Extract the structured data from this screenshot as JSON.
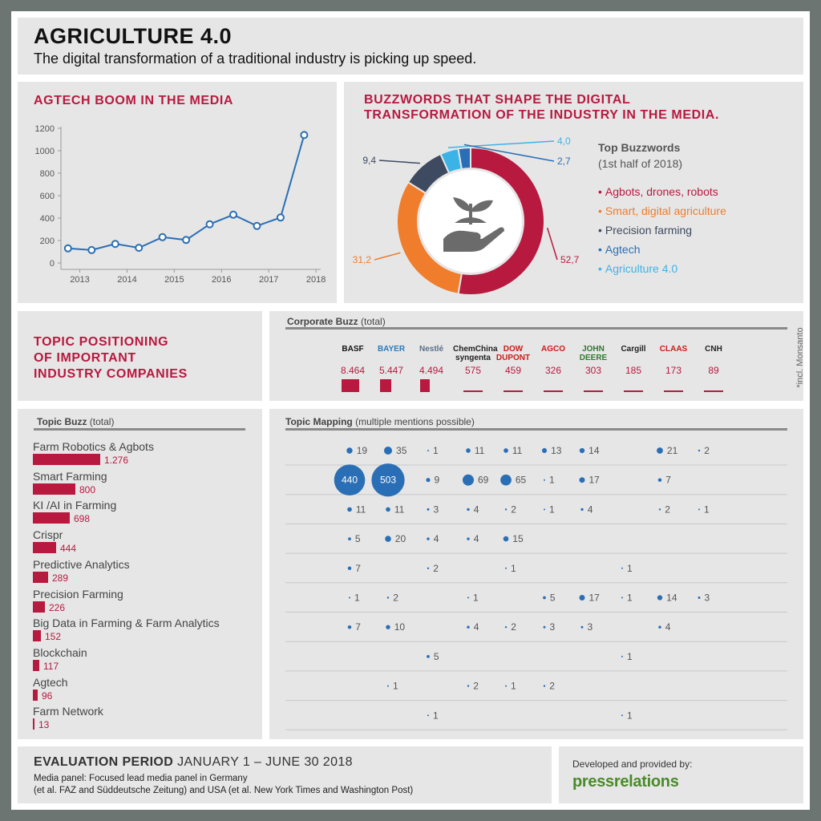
{
  "header": {
    "title": "AGRICULTURE 4.0",
    "subtitle": "The digital transformation of a traditional industry is picking up speed."
  },
  "media": {
    "title": "AGTECH BOOM IN THE MEDIA"
  },
  "buzzwords": {
    "title_line1": "BUZZWORDS THAT SHAPE THE DIGITAL",
    "title_line2": "TRANSFORMATION OF THE INDUSTRY IN THE MEDIA.",
    "legend_title": "Top Buzzwords",
    "legend_subtitle": "(1st half of 2018)",
    "legend": [
      {
        "label": "Agbots, drones, robots",
        "color": "#b8193f"
      },
      {
        "label": "Smart, digital agriculture",
        "color": "#ef7d2c"
      },
      {
        "label": "Precision farming",
        "color": "#3e4a60"
      },
      {
        "label": "Agtech",
        "color": "#2a6fb5"
      },
      {
        "label": "Agriculture 4.0",
        "color": "#3cb3e6"
      }
    ],
    "center_icon": "plant-in-hand-icon"
  },
  "positioning": {
    "title_line1": "TOPIC POSITIONING",
    "title_line2": "OF IMPORTANT",
    "title_line3": "INDUSTRY COMPANIES",
    "corporate_head": "Corporate Buzz",
    "corporate_head_suffix": "(total)",
    "monsanto_note": "*incl. Monsanto"
  },
  "topics": {
    "head": "Topic Buzz",
    "head_suffix": "(total)",
    "mapping_head": "Topic Mapping",
    "mapping_head_suffix": "(multiple mentions possible)"
  },
  "companies": [
    {
      "name": "BASF",
      "total": "8.464",
      "total_num": 8464,
      "color": "#111111"
    },
    {
      "name": "BAYER",
      "total": "5.447",
      "total_num": 5447,
      "color": "#2a7ab8"
    },
    {
      "name": "Nestlé",
      "total": "4.494",
      "total_num": 4494,
      "color": "#5b6f86"
    },
    {
      "name": "ChemChina syngenta",
      "total": "575",
      "total_num": 575,
      "color": "#222222"
    },
    {
      "name": "DOW DUPONT",
      "total": "459",
      "total_num": 459,
      "color": "#cc1a1a"
    },
    {
      "name": "AGCO",
      "total": "326",
      "total_num": 326,
      "color": "#cc1a1a"
    },
    {
      "name": "JOHN DEERE",
      "total": "303",
      "total_num": 303,
      "color": "#2f7a2f"
    },
    {
      "name": "Cargill",
      "total": "185",
      "total_num": 185,
      "color": "#222222"
    },
    {
      "name": "CLAAS",
      "total": "173",
      "total_num": 173,
      "color": "#cc1a1a"
    },
    {
      "name": "CNH",
      "total": "89",
      "total_num": 89,
      "color": "#222222"
    }
  ],
  "topic_list": [
    {
      "name": "Farm Robotics & Agbots",
      "value": "1.276",
      "value_num": 1276
    },
    {
      "name": "Smart Farming",
      "value": "800",
      "value_num": 800
    },
    {
      "name": "KI /AI in Farming",
      "value": "698",
      "value_num": 698
    },
    {
      "name": "Crispr",
      "value": "444",
      "value_num": 444
    },
    {
      "name": "Predictive Analytics",
      "value": "289",
      "value_num": 289
    },
    {
      "name": "Precision Farming",
      "value": "226",
      "value_num": 226
    },
    {
      "name": "Big Data in Farming & Farm Analytics",
      "value": "152",
      "value_num": 152
    },
    {
      "name": "Blockchain",
      "value": "117",
      "value_num": 117
    },
    {
      "name": "Agtech",
      "value": "96",
      "value_num": 96
    },
    {
      "name": "Farm Network",
      "value": "13",
      "value_num": 13
    }
  ],
  "mapping": [
    [
      19,
      35,
      1,
      11,
      11,
      13,
      14,
      null,
      21,
      2
    ],
    [
      440,
      503,
      9,
      69,
      65,
      1,
      17,
      null,
      7,
      null
    ],
    [
      11,
      11,
      3,
      4,
      2,
      1,
      4,
      null,
      2,
      1
    ],
    [
      5,
      20,
      4,
      4,
      15,
      null,
      null,
      null,
      null,
      null
    ],
    [
      7,
      null,
      2,
      null,
      1,
      null,
      null,
      1,
      null,
      null
    ],
    [
      1,
      2,
      null,
      1,
      null,
      5,
      17,
      1,
      14,
      3
    ],
    [
      7,
      10,
      null,
      4,
      2,
      3,
      3,
      null,
      4,
      null
    ],
    [
      null,
      null,
      5,
      null,
      null,
      null,
      null,
      1,
      null,
      null
    ],
    [
      null,
      1,
      null,
      2,
      1,
      2,
      null,
      null,
      null,
      null
    ],
    [
      null,
      null,
      1,
      null,
      null,
      null,
      null,
      1,
      null,
      null
    ]
  ],
  "footer": {
    "period_label": "EVALUATION PERIOD",
    "period_value": "JANUARY 1 – JUNE 30 2018",
    "line1": "Media panel: Focused lead media panel in Germany",
    "line2": "(et al. FAZ and Süddeutsche Zeitung) and USA (et al. New York Times and Washington Post)",
    "developed": "Developed and provided by:",
    "brand": "pressrelations",
    "brand_color": "#4a8a2a"
  },
  "chart_data": [
    {
      "type": "line",
      "title": "AGTECH BOOM IN THE MEDIA",
      "x_ticks": [
        "2013",
        "2014",
        "2015",
        "2016",
        "2017",
        "2018"
      ],
      "y_ticks": [
        "0",
        "200",
        "400",
        "600",
        "800",
        "1000",
        "1200"
      ],
      "ylim": [
        0,
        1200
      ],
      "xlim": [
        2012.6,
        2018.1
      ],
      "points": [
        {
          "x": 2012.75,
          "y": 130
        },
        {
          "x": 2013.25,
          "y": 115
        },
        {
          "x": 2013.75,
          "y": 170
        },
        {
          "x": 2014.25,
          "y": 135
        },
        {
          "x": 2014.75,
          "y": 230
        },
        {
          "x": 2015.25,
          "y": 205
        },
        {
          "x": 2015.75,
          "y": 345
        },
        {
          "x": 2016.25,
          "y": 430
        },
        {
          "x": 2016.75,
          "y": 330
        },
        {
          "x": 2017.25,
          "y": 405
        },
        {
          "x": 2017.75,
          "y": 1140
        }
      ],
      "color": "#2a6fb5",
      "grid": false
    },
    {
      "type": "pie",
      "title": "Top Buzzwords",
      "donut": true,
      "slices": [
        {
          "label": "Agbots, drones, robots",
          "value": 52.7,
          "display": "52,7",
          "color": "#b8193f"
        },
        {
          "label": "Smart, digital agriculture",
          "value": 31.2,
          "display": "31,2",
          "color": "#ef7d2c"
        },
        {
          "label": "Precision farming",
          "value": 9.4,
          "display": "9,4",
          "color": "#3e4a60"
        },
        {
          "label": "Agriculture 4.0",
          "value": 4.0,
          "display": "4,0",
          "color": "#3cb3e6"
        },
        {
          "label": "Agtech",
          "value": 2.7,
          "display": "2,7",
          "color": "#2a6fb5"
        }
      ]
    }
  ]
}
